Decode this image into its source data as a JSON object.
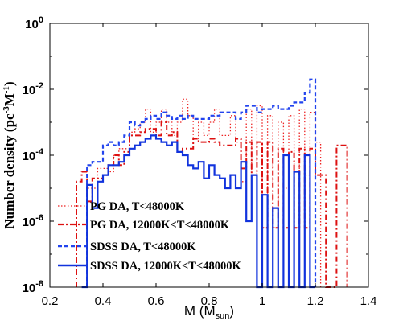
{
  "chart_data": {
    "type": "line",
    "xlabel": {
      "base": "M (M",
      "sub": "sun",
      "close": ")"
    },
    "ylabel": {
      "base": "Number density (pc",
      "sup1": "-3",
      "mid": "M",
      "sup2": "-1",
      "close": ")"
    },
    "xlim": [
      0.2,
      1.4
    ],
    "ylim_log10": [
      -8,
      0
    ],
    "y_scale": "log",
    "x_ticks": [
      "0.2",
      "0.4",
      "0.6",
      "0.8",
      "1",
      "1.2",
      "1.4"
    ],
    "y_ticks": [
      {
        "base": "10",
        "exp": "0"
      },
      {
        "base": "10",
        "exp": "-2"
      },
      {
        "base": "10",
        "exp": "-4"
      },
      {
        "base": "10",
        "exp": "-6"
      },
      {
        "base": "10",
        "exp": "-8"
      }
    ],
    "legend_position": "bottom-left",
    "bin_width": 0.02,
    "series": [
      {
        "name": "PG DA, T<48000K",
        "color": "#ee2222",
        "style": "dotted",
        "bin_starts": [
          0.34,
          0.36,
          0.38,
          0.4,
          0.42,
          0.44,
          0.46,
          0.48,
          0.5,
          0.52,
          0.54,
          0.56,
          0.58,
          0.6,
          0.62,
          0.64,
          0.66,
          0.68,
          0.7,
          0.72,
          0.74,
          0.76,
          0.78,
          0.8,
          0.82,
          0.84,
          0.86,
          0.88,
          0.9,
          0.92,
          0.94,
          0.96,
          0.98,
          1.0,
          1.02,
          1.04,
          1.06,
          1.08,
          1.1,
          1.12,
          1.14,
          1.16,
          1.18,
          1.2
        ],
        "log10_values": [
          -5.0,
          -5.0,
          -4.4,
          -4.4,
          -4.5,
          -4.0,
          -3.8,
          -3.8,
          -3.3,
          -3.2,
          -3.0,
          -2.6,
          -3.3,
          -3.0,
          -2.6,
          -3.0,
          -3.4,
          -3.0,
          -2.3,
          -2.8,
          -3.5,
          -3.0,
          -3.4,
          -3.0,
          -2.6,
          -3.4,
          -3.4,
          -2.8,
          -3.6,
          -4.8,
          -2.6,
          -4.6,
          -2.5,
          -6.2,
          -2.8,
          -6.2,
          -3.0,
          -5.0,
          -2.8,
          -6.2,
          -2.6,
          -4.6,
          -2.7,
          -3.6
        ]
      },
      {
        "name": "PG DA, 12000K<T<48000K",
        "color": "#dd1111",
        "style": "dashdot",
        "bin_starts": [
          0.3,
          0.32,
          0.34,
          0.36,
          0.38,
          0.4,
          0.42,
          0.44,
          0.46,
          0.48,
          0.5,
          0.52,
          0.54,
          0.56,
          0.58,
          0.6,
          0.62,
          0.64,
          0.66,
          0.68,
          0.7,
          0.72,
          0.74,
          0.76,
          0.78,
          0.8,
          0.82,
          0.84,
          0.86,
          0.88,
          0.9,
          0.92,
          0.94,
          0.96,
          0.98,
          1.0,
          1.02,
          1.04,
          1.06,
          1.08,
          1.1,
          1.12,
          1.14,
          1.16,
          1.18,
          1.2,
          1.22,
          1.24,
          1.26,
          1.28,
          1.3
        ],
        "log10_values": [
          -4.8,
          -4.5,
          -5.4,
          -4.7,
          -4.7,
          -4.6,
          -4.3,
          -4.0,
          -4.3,
          -3.9,
          -3.4,
          -3.4,
          -3.3,
          -3.2,
          -3.2,
          -3.4,
          -3.0,
          -3.4,
          -3.3,
          -3.9,
          -3.8,
          -3.8,
          -3.5,
          -3.6,
          -3.6,
          -3.5,
          -3.6,
          -3.7,
          -3.7,
          -3.7,
          -3.5,
          -4.4,
          -3.6,
          -4.6,
          -3.6,
          -6.2,
          -3.6,
          -6.2,
          -3.8,
          -6.2,
          -3.9,
          -6.2,
          -3.8,
          -6.2,
          -3.8,
          -4.6,
          -4.6,
          -8.0,
          -8.0,
          -3.7,
          -3.7
        ]
      },
      {
        "name": "SDSS DA, T<48000K",
        "color": "#2244ee",
        "style": "dashed",
        "bin_starts": [
          0.34,
          0.36,
          0.38,
          0.4,
          0.42,
          0.44,
          0.46,
          0.48,
          0.5,
          0.52,
          0.54,
          0.56,
          0.58,
          0.6,
          0.62,
          0.64,
          0.66,
          0.68,
          0.7,
          0.72,
          0.74,
          0.76,
          0.78,
          0.8,
          0.82,
          0.84,
          0.86,
          0.88,
          0.9,
          0.92,
          0.94,
          0.96,
          0.98,
          1.0,
          1.02,
          1.04,
          1.06,
          1.08,
          1.1,
          1.12,
          1.14,
          1.16,
          1.18
        ],
        "log10_values": [
          -4.3,
          -4.2,
          -4.2,
          -3.7,
          -3.6,
          -3.7,
          -3.6,
          -3.4,
          -3.0,
          -3.1,
          -3.0,
          -2.9,
          -2.8,
          -2.9,
          -2.7,
          -2.8,
          -2.9,
          -2.8,
          -2.9,
          -2.8,
          -2.9,
          -2.9,
          -2.9,
          -2.8,
          -2.8,
          -2.7,
          -2.7,
          -2.7,
          -2.9,
          -2.7,
          -2.5,
          -2.5,
          -2.7,
          -2.6,
          -2.6,
          -2.5,
          -2.6,
          -2.6,
          -2.5,
          -2.4,
          -2.4,
          -2.1,
          -1.7
        ]
      },
      {
        "name": "SDSS DA, 12000K<T<48000K",
        "color": "#1133dd",
        "style": "solid",
        "bin_starts": [
          0.32,
          0.34,
          0.36,
          0.38,
          0.4,
          0.42,
          0.44,
          0.46,
          0.48,
          0.5,
          0.52,
          0.54,
          0.56,
          0.58,
          0.6,
          0.62,
          0.64,
          0.66,
          0.68,
          0.7,
          0.72,
          0.74,
          0.76,
          0.78,
          0.8,
          0.82,
          0.84,
          0.86,
          0.88,
          0.9,
          0.92,
          0.94,
          0.96,
          0.98,
          1.0,
          1.02,
          1.04,
          1.06,
          1.08,
          1.1,
          1.12,
          1.14,
          1.16,
          1.18
        ],
        "log10_values": [
          -8.0,
          -4.9,
          -5.6,
          -4.8,
          -4.6,
          -4.3,
          -4.3,
          -4.2,
          -4.0,
          -3.8,
          -3.7,
          -3.6,
          -3.5,
          -3.4,
          -3.5,
          -3.6,
          -3.7,
          -3.6,
          -3.9,
          -4.0,
          -4.3,
          -4.4,
          -4.2,
          -4.7,
          -4.3,
          -4.6,
          -4.7,
          -5.0,
          -4.6,
          -5.0,
          -4.2,
          -6.0,
          -4.6,
          -8.0,
          -5.2,
          -8.0,
          -5.6,
          -8.0,
          -4.0,
          -8.0,
          -4.5,
          -8.0,
          -4.0,
          -8.0
        ]
      }
    ]
  }
}
